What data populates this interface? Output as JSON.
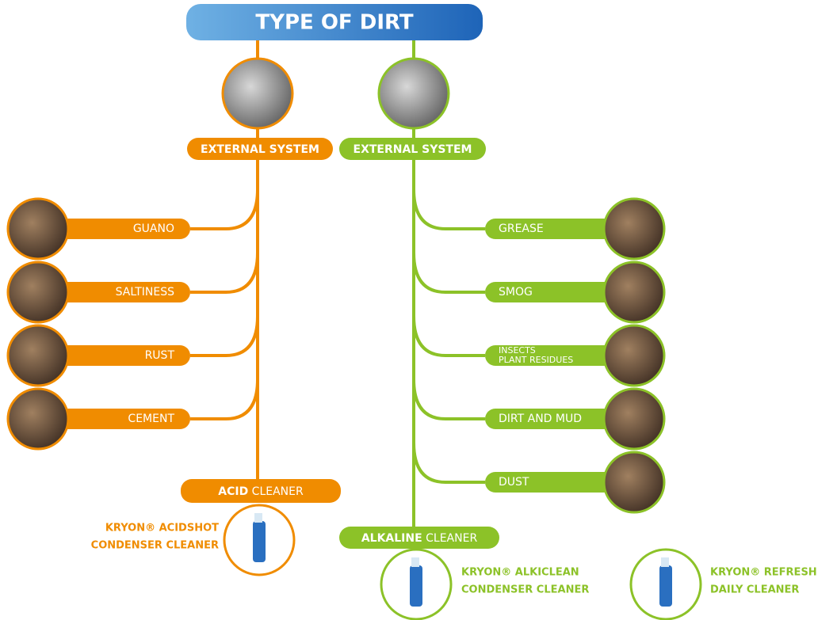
{
  "title": "TYPE OF DIRT",
  "branches": [
    {
      "label": "EXTERNAL SYSTEM",
      "items": [
        [
          "GUANO"
        ],
        [
          "SALTINESS"
        ],
        [
          "RUST"
        ],
        [
          "CEMENT"
        ]
      ],
      "cleaner": {
        "bold": "ACID",
        "rest": "CLEANER"
      },
      "products": [
        {
          "line1": "KRYON® ACIDSHOT",
          "line2": "CONDENSER CLEANER"
        }
      ]
    },
    {
      "label": "EXTERNAL SYSTEM",
      "items": [
        [
          "GREASE"
        ],
        [
          "SMOG"
        ],
        [
          "INSECTS",
          "PLANT RESIDUES"
        ],
        [
          "DIRT AND MUD"
        ],
        [
          "DUST"
        ]
      ],
      "cleaner": {
        "bold": "ALKALINE",
        "rest": "CLEANER"
      },
      "products": [
        {
          "line1": "KRYON® ALKICLEAN",
          "line2": "CONDENSER CLEANER"
        },
        {
          "line1": "KRYON® REFRESH",
          "line2": "DAILY CLEANER"
        }
      ]
    }
  ]
}
